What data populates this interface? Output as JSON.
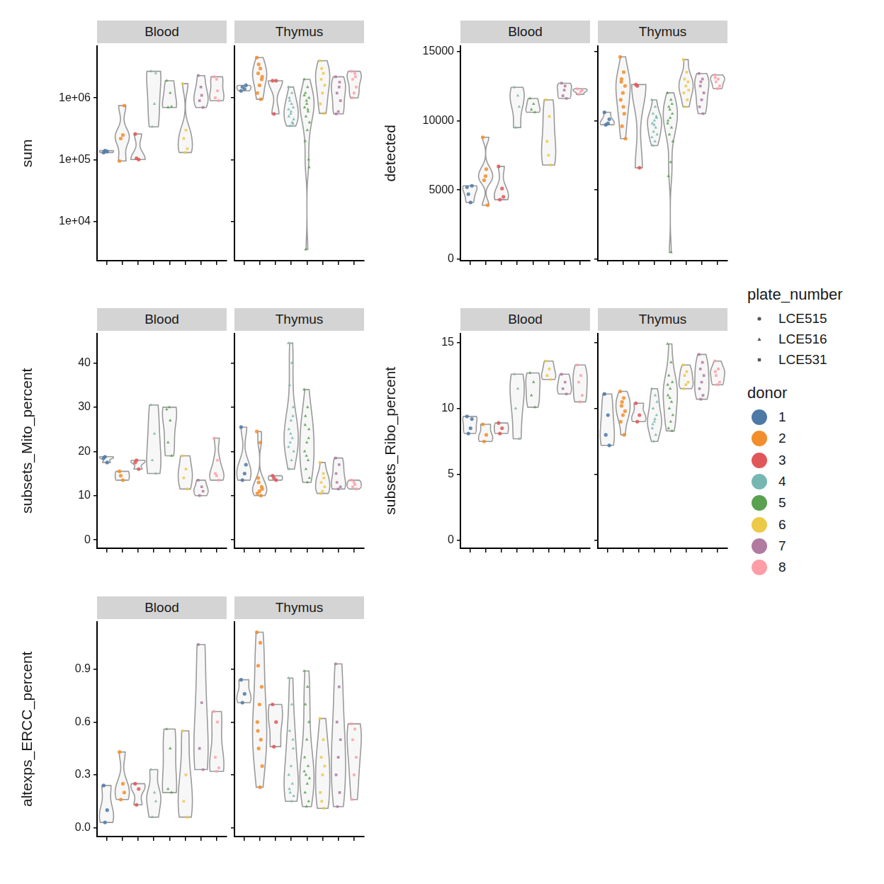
{
  "legends": [
    {
      "title": "plate_number",
      "items": [
        {
          "name": "LCE515",
          "marker": "circle"
        },
        {
          "name": "LCE516",
          "marker": "triangle"
        },
        {
          "name": "LCE531",
          "marker": "square"
        }
      ]
    },
    {
      "title": "donor",
      "items": [
        {
          "name": "1",
          "color": "#4E79A7",
          "plate": "LCE515"
        },
        {
          "name": "2",
          "color": "#F28E2B",
          "plate": "LCE515"
        },
        {
          "name": "3",
          "color": "#E15759",
          "plate": "LCE515"
        },
        {
          "name": "4",
          "color": "#76B7B2",
          "plate": "LCE516"
        },
        {
          "name": "5",
          "color": "#59A14F",
          "plate": "LCE516"
        },
        {
          "name": "6",
          "color": "#EDC948",
          "plate": "LCE531"
        },
        {
          "name": "7",
          "color": "#B07AA1",
          "plate": "LCE531"
        },
        {
          "name": "8",
          "color": "#FF9DA7",
          "plate": "LCE531"
        }
      ]
    }
  ],
  "chart_data": [
    {
      "type": "violin",
      "y_label": "sum",
      "log": "y",
      "ylim": [
        2300,
        7000000
      ],
      "yticks": [
        {
          "value": 10000,
          "label": "1e+04"
        },
        {
          "value": 100000,
          "label": "1e+05"
        },
        {
          "value": 1000000,
          "label": "1e+06"
        }
      ],
      "categories": [
        null,
        null,
        null,
        null,
        null,
        null,
        null,
        null
      ],
      "facets": [
        {
          "title": "Blood",
          "tick_labels": "y",
          "values": [
            [
              130000,
              135000,
              140000
            ],
            [
              95000,
              250000,
              220000,
              750000
            ],
            [
              260000,
              100000,
              105000
            ],
            [
              2700000,
              800000,
              340000,
              2500000
            ],
            [
              1900000,
              1200000,
              700000,
              720000
            ],
            [
              1700000,
              300000,
              220000,
              150000,
              130000
            ],
            [
              2300000,
              1100000,
              900000,
              700000,
              1500000
            ],
            [
              2200000,
              1300000,
              1000000,
              900000,
              2000000
            ]
          ]
        },
        {
          "title": "Thymus",
          "tick_labels": false,
          "values": [
            [
              1300000,
              1400000,
              1500000,
              1600000
            ],
            [
              4500000,
              3000000,
              2500000,
              2000000,
              1600000,
              1200000,
              950000,
              3500000,
              2200000
            ],
            [
              1900000,
              1900000,
              550000
            ],
            [
              1500000,
              1200000,
              900000,
              700000,
              600000,
              500000,
              400000,
              350000,
              450000,
              800000,
              1000000,
              380000,
              550000,
              650000
            ],
            [
              2000000,
              1500000,
              1200000,
              1000000,
              800000,
              700000,
              600000,
              500000,
              400000,
              300000,
              200000,
              100000,
              900000,
              1100000,
              650000,
              3500,
              75000
            ],
            [
              4000000,
              2500000,
              2000000,
              1600000,
              1200000,
              800000,
              560000,
              3000000
            ],
            [
              2200000,
              1500000,
              1200000,
              900000,
              600000,
              550000,
              1800000
            ],
            [
              2700000,
              2500000,
              2000000,
              1500000,
              1200000,
              1000000,
              2200000
            ]
          ]
        }
      ]
    },
    {
      "type": "violin",
      "y_label": "detected",
      "ylim": [
        -100,
        15400
      ],
      "yticks": [
        0,
        5000,
        10000,
        15000
      ],
      "categories": [
        null,
        null,
        null,
        null,
        null,
        null,
        null,
        null
      ],
      "facets": [
        {
          "title": "Blood",
          "tick_labels": "y",
          "values": [
            [
              5200,
              4100,
              4700,
              5300
            ],
            [
              8800,
              6500,
              5700,
              3900,
              6000
            ],
            [
              6700,
              5100,
              4300,
              4500
            ],
            [
              12400,
              11800,
              9500,
              11000
            ],
            [
              11600,
              11200,
              10800,
              10600
            ],
            [
              11500,
              10300,
              8500,
              6800,
              7500
            ],
            [
              12700,
              12500,
              11800,
              11600,
              12200
            ],
            [
              12300,
              12100,
              11900,
              12200
            ]
          ]
        },
        {
          "title": "Thymus",
          "tick_labels": false,
          "values": [
            [
              10600,
              9800,
              9700,
              10100
            ],
            [
              14600,
              13500,
              13000,
              12500,
              12000,
              11500,
              10500,
              9600,
              8700,
              11000,
              12800
            ],
            [
              12600,
              6600,
              12500
            ],
            [
              11500,
              11000,
              10500,
              10200,
              10000,
              9800,
              9500,
              9200,
              9000,
              8500,
              8200,
              10300,
              9700,
              8800
            ],
            [
              12000,
              11500,
              11000,
              10500,
              10200,
              10000,
              9500,
              9000,
              8500,
              7000,
              6000,
              11200,
              10800,
              9800,
              500
            ],
            [
              14400,
              13500,
              13000,
              12800,
              12500,
              12000,
              11500,
              11000,
              12200
            ],
            [
              13400,
              13000,
              12500,
              12000,
              11500,
              11000,
              10500,
              12800
            ],
            [
              13300,
              13000,
              12800,
              12500,
              12300,
              13100
            ]
          ]
        }
      ]
    },
    {
      "type": "violin",
      "y_label": "subsets_Mito_percent",
      "ylim": [
        -1.9,
        46.7
      ],
      "yticks": [
        0,
        10,
        20,
        30,
        40
      ],
      "categories": [
        null,
        null,
        null,
        null,
        null,
        null,
        null,
        null
      ],
      "facets": [
        {
          "title": "Blood",
          "tick_labels": "y",
          "values": [
            [
              18.5,
              17.5,
              18.8
            ],
            [
              15.5,
              13.5,
              14.5
            ],
            [
              17.5,
              16,
              18
            ],
            [
              30.5,
              24,
              18,
              15
            ],
            [
              29.5,
              27,
              22,
              19,
              30
            ],
            [
              19,
              16,
              14,
              11.5
            ],
            [
              13.5,
              12,
              10,
              11
            ],
            [
              23,
              18,
              15,
              13.5,
              14.5
            ]
          ]
        },
        {
          "title": "Thymus",
          "tick_labels": false,
          "values": [
            [
              25.5,
              15,
              13.5,
              17
            ],
            [
              24.5,
              22,
              14,
              12,
              11,
              10.5,
              10,
              13,
              11.5
            ],
            [
              14.5,
              13.5,
              14
            ],
            [
              44.5,
              40,
              35,
              30,
              27,
              25,
              23,
              22,
              20,
              18,
              16,
              28,
              24,
              21
            ],
            [
              34,
              30,
              28,
              25,
              22,
              20,
              18,
              16,
              14,
              13,
              26,
              23,
              19
            ],
            [
              17.5,
              15,
              13,
              12,
              11,
              10.5,
              14
            ],
            [
              18.5,
              17,
              13,
              12,
              11.5,
              15
            ],
            [
              13.5,
              12.5,
              12,
              11.5,
              13
            ]
          ]
        }
      ]
    },
    {
      "type": "violin",
      "y_label": "subsets_Ribo_percent",
      "ylim": [
        -0.6,
        15.7
      ],
      "yticks": [
        0,
        5,
        10,
        15
      ],
      "categories": [
        null,
        null,
        null,
        null,
        null,
        null,
        null,
        null
      ],
      "facets": [
        {
          "title": "Blood",
          "tick_labels": "y",
          "values": [
            [
              9.4,
              8.5,
              8.1,
              9.2
            ],
            [
              8.8,
              8.0,
              7.5
            ],
            [
              8.9,
              8.5,
              8.1
            ],
            [
              12.6,
              11.5,
              10,
              7.7
            ],
            [
              12.7,
              12.0,
              11.0,
              10.1
            ],
            [
              13.6,
              13.0,
              12.5,
              12.2
            ],
            [
              12.6,
              12.0,
              11.5,
              11.1
            ],
            [
              13.3,
              12.5,
              12.0,
              11.0,
              10.5
            ]
          ]
        },
        {
          "title": "Thymus",
          "tick_labels": false,
          "values": [
            [
              11.1,
              9.5,
              8,
              7.2
            ],
            [
              11.3,
              10.8,
              10.2,
              9.8,
              9.5,
              9,
              8,
              10.5
            ],
            [
              10.4,
              9.5,
              9.0
            ],
            [
              11.5,
              11,
              10,
              9.5,
              9,
              8.5,
              8,
              7.5,
              10.5,
              9.2,
              8.8
            ],
            [
              14.9,
              13.5,
              12.5,
              12,
              11.5,
              11,
              10.5,
              10,
              9.5,
              9,
              8.5,
              8.3,
              10.8,
              11.8
            ],
            [
              13.3,
              12.8,
              12.5,
              12.0,
              11.8,
              11.5
            ],
            [
              14.1,
              13.5,
              13,
              12.5,
              12,
              11.5,
              11,
              10.7
            ],
            [
              13.6,
              13.0,
              12.5,
              12.0,
              11.8,
              12.8
            ]
          ]
        }
      ]
    },
    {
      "type": "violin",
      "y_label": "altexps_ERCC_percent",
      "ylim": [
        -0.05,
        1.17
      ],
      "yticks": [
        {
          "value": 0,
          "label": "0.0"
        },
        0.3,
        0.6,
        0.9
      ],
      "categories": [
        null,
        null,
        null,
        null,
        null,
        null,
        null,
        null
      ],
      "facets": [
        {
          "title": "Blood",
          "tick_labels": "y",
          "values": [
            [
              0.24,
              0.1,
              0.03
            ],
            [
              0.43,
              0.25,
              0.16,
              0.2
            ],
            [
              0.25,
              0.22,
              0.13
            ],
            [
              0.33,
              0.2,
              0.06,
              0.15
            ],
            [
              0.56,
              0.45,
              0.22,
              0.2
            ],
            [
              0.55,
              0.3,
              0.15,
              0.06
            ],
            [
              1.04,
              0.71,
              0.45,
              0.33
            ],
            [
              0.66,
              0.6,
              0.4,
              0.34,
              0.32
            ]
          ]
        },
        {
          "title": "Thymus",
          "tick_labels": false,
          "values": [
            [
              0.84,
              0.76,
              0.71
            ],
            [
              1.11,
              1.05,
              0.92,
              0.8,
              0.7,
              0.6,
              0.5,
              0.45,
              0.35,
              0.23,
              0.55
            ],
            [
              0.7,
              0.6,
              0.46
            ],
            [
              0.85,
              0.7,
              0.55,
              0.45,
              0.35,
              0.3,
              0.25,
              0.2,
              0.18,
              0.15,
              0.22,
              0.5
            ],
            [
              0.89,
              0.8,
              0.7,
              0.6,
              0.5,
              0.4,
              0.35,
              0.3,
              0.28,
              0.25,
              0.2,
              0.15,
              0.12,
              0.32
            ],
            [
              0.62,
              0.5,
              0.4,
              0.35,
              0.3,
              0.2,
              0.11,
              0.15
            ],
            [
              0.93,
              0.8,
              0.6,
              0.5,
              0.4,
              0.3,
              0.2,
              0.12
            ],
            [
              0.59,
              0.56,
              0.5,
              0.4,
              0.3,
              0.16
            ]
          ]
        }
      ]
    }
  ]
}
